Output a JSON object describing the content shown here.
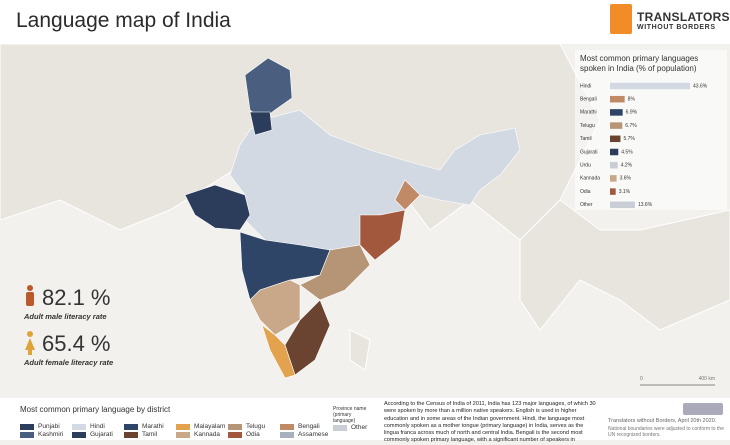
{
  "header": {
    "title": "Language map of India",
    "logo_line1": "TRANSLATORS",
    "logo_line2": "WITHOUT BORDERS"
  },
  "chart_data": {
    "type": "bar",
    "orientation": "horizontal",
    "title": "Most common primary languages spoken in India (% of population)",
    "categories": [
      "Hindi",
      "Bengali",
      "Marathi",
      "Telugu",
      "Tamil",
      "Gujarati",
      "Urdu",
      "Kannada",
      "Odia",
      "Other"
    ],
    "values": [
      43.6,
      8,
      6.9,
      6.7,
      5.7,
      4.5,
      4.2,
      3.6,
      3.1,
      13.6
    ],
    "value_labels": [
      "43.6%",
      "8%",
      "6.9%",
      "6.7%",
      "5.7%",
      "4.5%",
      "4.2%",
      "3.6%",
      "3.1%",
      "13.6%"
    ],
    "colors": [
      "#d3d9e2",
      "#c08a66",
      "#2f4567",
      "#b69577",
      "#6a4431",
      "#2b3d5a",
      "#c9ced6",
      "#c9a88a",
      "#a2583c",
      "#c9ced6"
    ]
  },
  "stats": [
    {
      "value": "82.1 %",
      "caption": "Adult male literacy rate"
    },
    {
      "value": "65.4 %",
      "caption": "Adult female literacy rate"
    }
  ],
  "legend": {
    "title": "Most common primary language by district",
    "items": [
      {
        "lines": [
          "Punjabi",
          "Kashmiri"
        ],
        "colors": [
          "#2b3d5a",
          "#4a5f80"
        ]
      },
      {
        "lines": [
          "Hindi",
          "Gujarati"
        ],
        "colors": [
          "#d3d9e2",
          "#2b3d5a"
        ]
      },
      {
        "lines": [
          "Marathi",
          "Tamil"
        ],
        "colors": [
          "#2f4567",
          "#6a4431"
        ]
      },
      {
        "lines": [
          "Malayalam",
          "Kannada"
        ],
        "colors": [
          "#e3a24e",
          "#c9a88a"
        ]
      },
      {
        "lines": [
          "Telugu",
          "Odia"
        ],
        "colors": [
          "#b69577",
          "#a2583c"
        ]
      },
      {
        "lines": [
          "Bengali",
          "Assamese"
        ],
        "colors": [
          "#c08a66",
          "#a8b0bd"
        ]
      }
    ],
    "note": "Province name (primary language)",
    "other": "Other"
  },
  "description": "According to the Census of India of 2011, India has 123 major languages, of which 30 were spoken by more than a million native speakers. English is used in higher education and in some areas of the Indian government. Hindi, the language most commonly spoken as a mother tongue (primary language) in India, serves as the lingua franca across much of north and central India. Bengali is the second most commonly spoken primary language, with a significant number of speakers in",
  "footer": {
    "credit": "Translators without Borders, April 20th 2020.",
    "note": "National boundaries were adjusted to conform to the UN recognized borders."
  },
  "scale": {
    "start": "0",
    "end": "400 km"
  }
}
